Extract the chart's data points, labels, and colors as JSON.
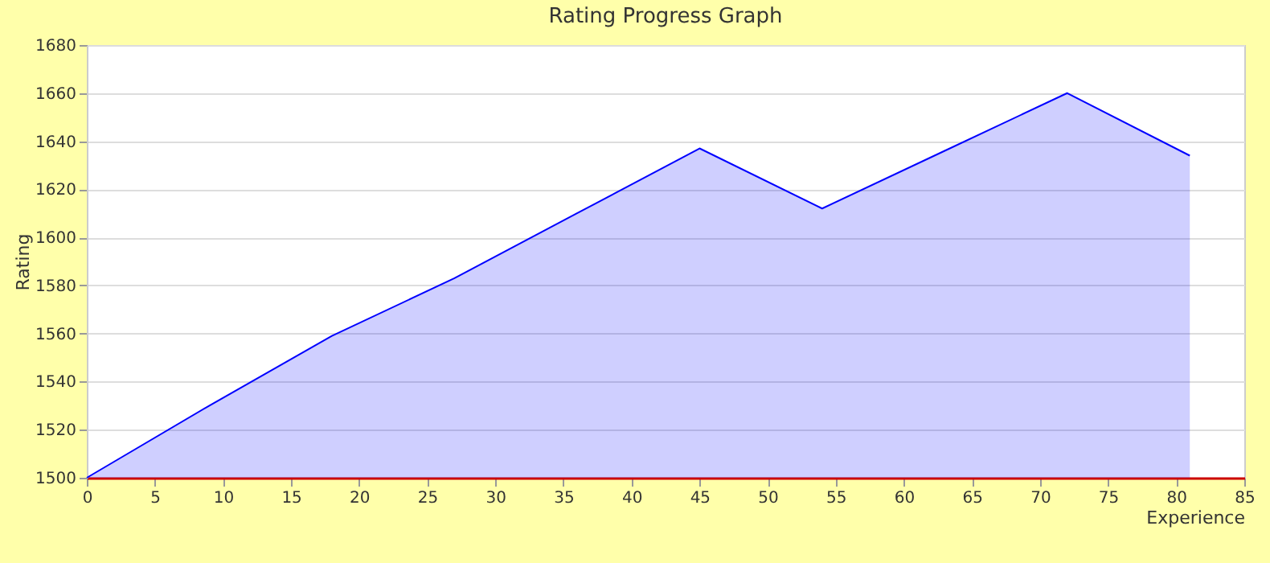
{
  "chart_data": {
    "type": "area",
    "title": "Rating Progress Graph",
    "xlabel": "Experience",
    "ylabel": "Rating",
    "x": [
      0,
      9,
      18,
      27,
      36,
      45,
      54,
      63,
      72,
      81
    ],
    "series": [
      {
        "color": "#0000ff",
        "values": [
          1500,
          1530,
          1559,
          1583,
          1610,
          1637,
          1612,
          1636,
          1660,
          1634
        ]
      }
    ],
    "xlim": [
      0,
      85
    ],
    "xticks": [
      0,
      5,
      10,
      15,
      20,
      25,
      30,
      35,
      40,
      45,
      50,
      55,
      60,
      65,
      70,
      75,
      80,
      85
    ],
    "ylim": [
      1500,
      1680
    ],
    "yticks": [
      1500,
      1520,
      1540,
      1560,
      1580,
      1600,
      1620,
      1640,
      1660,
      1680
    ],
    "grid": "y",
    "legend": false
  }
}
